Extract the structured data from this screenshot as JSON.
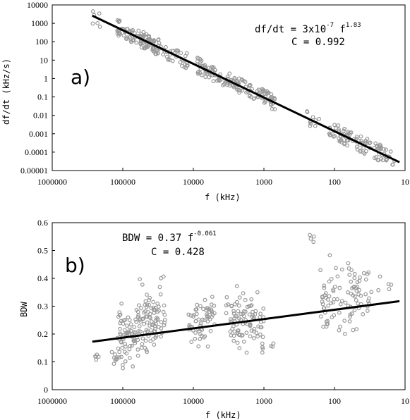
{
  "chart_data": [
    {
      "panel_label": "a)",
      "type": "scatter",
      "xlabel": "f (kHz)",
      "ylabel": "df/dt (kHz/s)",
      "x_scale": "log",
      "x_reversed": true,
      "y_scale": "log",
      "xlim": [
        1000000,
        10
      ],
      "ylim": [
        1e-05,
        10000
      ],
      "x_tick_labels": [
        "1000000",
        "100000",
        "10000",
        "1000",
        "100",
        "10"
      ],
      "y_tick_labels": [
        "10000",
        "1000",
        "100",
        "10",
        "1",
        "0.1",
        "0.01",
        "0.001",
        "0.0001",
        "0.00001"
      ],
      "annotation": {
        "eq_prefix": "df/dt = 3x10",
        "eq_exp1": "-7",
        "eq_mid": " f",
        "eq_exp2": "1.83",
        "corr": "C = 0.992"
      },
      "fit": {
        "coef": 3e-07,
        "exp": 1.83,
        "x_range": [
          270000,
          12
        ]
      },
      "point_clusters": [
        {
          "f_from": 270000,
          "f_to": 210000,
          "n": 6
        },
        {
          "f_from": 120000,
          "f_to": 60000,
          "n": 40
        },
        {
          "f_from": 60000,
          "f_to": 30000,
          "n": 70
        },
        {
          "f_from": 30000,
          "f_to": 12000,
          "n": 35
        },
        {
          "f_from": 9000,
          "f_to": 5500,
          "n": 30
        },
        {
          "f_from": 5500,
          "f_to": 2500,
          "n": 45
        },
        {
          "f_from": 2500,
          "f_to": 700,
          "n": 70
        },
        {
          "f_from": 250,
          "f_to": 160,
          "n": 10
        },
        {
          "f_from": 120,
          "f_to": 55,
          "n": 45
        },
        {
          "f_from": 55,
          "f_to": 14,
          "n": 60
        }
      ],
      "point_color": "#999999",
      "line_color": "#000000"
    },
    {
      "panel_label": "b)",
      "type": "scatter",
      "xlabel": "f (kHz)",
      "ylabel": "BDW",
      "x_scale": "log",
      "x_reversed": true,
      "y_scale": "linear",
      "xlim": [
        1000000,
        10
      ],
      "ylim": [
        0,
        0.6
      ],
      "x_tick_labels": [
        "1000000",
        "100000",
        "10000",
        "1000",
        "100",
        "10"
      ],
      "y_tick_labels": [
        "0.6",
        "0.5",
        "0.4",
        "0.3",
        "0.2",
        "0.1",
        "0"
      ],
      "y_ticks": [
        0.6,
        0.5,
        0.4,
        0.3,
        0.2,
        0.1,
        0
      ],
      "annotation": {
        "eq_prefix": "BDW = 0.37 f",
        "eq_exp": "-0.061",
        "corr": "C = 0.428"
      },
      "fit": {
        "coef": 0.37,
        "exp": -0.061,
        "x_range": [
          270000,
          12
        ]
      },
      "point_clusters": [
        {
          "f_from": 270000,
          "f_to": 220000,
          "n": 5,
          "ymin": 0.1,
          "ymax": 0.14
        },
        {
          "f_from": 150000,
          "f_to": 120000,
          "n": 8,
          "ymin": 0.07,
          "ymax": 0.16
        },
        {
          "f_from": 120000,
          "f_to": 60000,
          "n": 70,
          "ymin": 0.05,
          "ymax": 0.33
        },
        {
          "f_from": 60000,
          "f_to": 25000,
          "n": 90,
          "ymin": 0.08,
          "ymax": 0.43
        },
        {
          "f_from": 12000,
          "f_to": 5000,
          "n": 60,
          "ymin": 0.13,
          "ymax": 0.36
        },
        {
          "f_from": 3500,
          "f_to": 1000,
          "n": 95,
          "ymin": 0.09,
          "ymax": 0.4
        },
        {
          "f_from": 800,
          "f_to": 700,
          "n": 3,
          "ymin": 0.15,
          "ymax": 0.17
        },
        {
          "f_from": 230,
          "f_to": 190,
          "n": 4,
          "ymin": 0.5,
          "ymax": 0.57
        },
        {
          "f_from": 160,
          "f_to": 30,
          "n": 95,
          "ymin": 0.14,
          "ymax": 0.53
        },
        {
          "f_from": 25,
          "f_to": 12,
          "n": 5,
          "ymin": 0.3,
          "ymax": 0.46
        }
      ],
      "point_color": "#999999",
      "line_color": "#000000"
    }
  ]
}
